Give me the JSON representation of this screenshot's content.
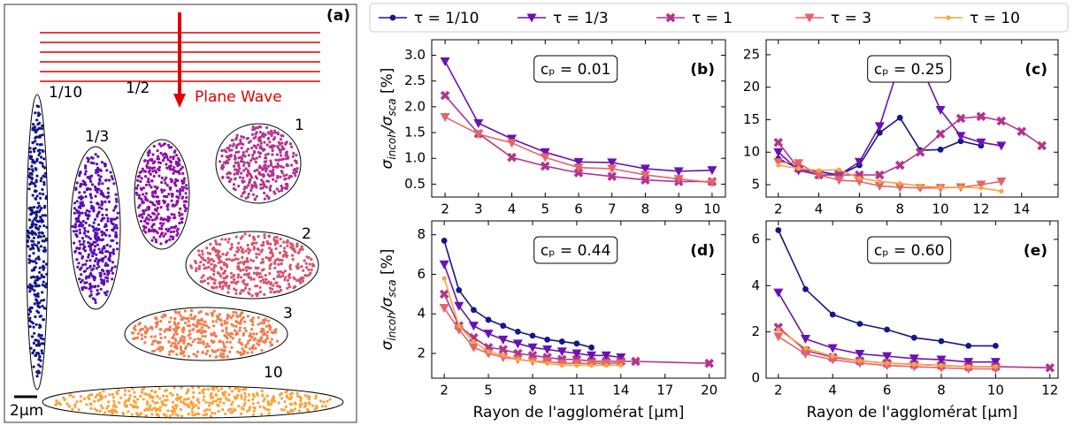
{
  "diagram": {
    "label": "(a)",
    "wave_label": "Plane Wave",
    "scale_label": "2μm",
    "shapes": [
      "1/10",
      "1/3",
      "1/2",
      "1",
      "2",
      "3",
      "10"
    ]
  },
  "legend": {
    "entries": [
      {
        "name": "τ = 1/10",
        "color": "#16168a",
        "marker": "o"
      },
      {
        "name": "τ = 1/3",
        "color": "#6a12b4",
        "marker": "v"
      },
      {
        "name": "τ = 1",
        "color": "#b2348f",
        "marker": "X"
      },
      {
        "name": "τ = 3",
        "color": "#e3646b",
        "marker": "v"
      },
      {
        "name": "τ = 10",
        "color": "#f7a440",
        "marker": "."
      }
    ]
  },
  "chart_data": [
    {
      "type": "line",
      "label": "(b)",
      "annotation": "cₚ = 0.01",
      "ylabel": [
        "σ",
        "incoh",
        "/σ",
        "sca",
        " [%]"
      ],
      "x": [
        2,
        3,
        4,
        5,
        6,
        7,
        8,
        9,
        10
      ],
      "series": [
        {
          "values": [
            null,
            null,
            null,
            null,
            null,
            null,
            null,
            null,
            null
          ]
        },
        {
          "values": [
            2.88,
            1.68,
            1.38,
            1.12,
            0.93,
            0.92,
            0.8,
            0.75,
            0.77
          ]
        },
        {
          "values": [
            2.22,
            1.48,
            1.02,
            0.85,
            0.72,
            0.65,
            0.58,
            0.55,
            0.55
          ]
        },
        {
          "values": [
            1.8,
            1.47,
            1.3,
            1.02,
            0.82,
            0.8,
            0.68,
            0.6,
            0.53
          ]
        },
        {
          "values": [
            null,
            null,
            null,
            null,
            null,
            null,
            null,
            null,
            null
          ]
        }
      ],
      "xlim": [
        1.6,
        10.4
      ],
      "xticks": [
        2,
        3,
        4,
        5,
        6,
        7,
        8,
        9,
        10
      ],
      "ylim": [
        0.25,
        3.3
      ],
      "yticks": [
        0.5,
        {
          "value": 1,
          "label": "1.0"
        },
        1.5,
        {
          "value": 2,
          "label": "2.0"
        },
        2.5,
        {
          "value": 3,
          "label": "3.0"
        }
      ]
    },
    {
      "type": "line",
      "label": "(c)",
      "annotation": "cₚ = 0.25",
      "x": [
        2,
        3,
        4,
        5,
        6,
        7,
        8,
        9,
        10,
        11,
        12,
        13,
        14,
        15
      ],
      "series": [
        {
          "values": [
            9,
            7.5,
            7,
            6.5,
            8,
            13,
            15.3,
            10.3,
            10.4,
            11.7,
            11,
            null,
            null,
            null
          ]
        },
        {
          "values": [
            10,
            7.2,
            6.5,
            6.5,
            8.5,
            14,
            23.8,
            23.5,
            16.5,
            12.5,
            11.5,
            11,
            null,
            null
          ]
        },
        {
          "values": [
            11.5,
            7.5,
            6.5,
            6.5,
            6.5,
            6.5,
            8,
            10,
            12.8,
            15.2,
            15.5,
            14.8,
            13.2,
            11
          ]
        },
        {
          "values": [
            8.5,
            8.3,
            6.5,
            5.7,
            5.5,
            4.8,
            4.6,
            4.5,
            4.5,
            4.6,
            5,
            5.5,
            null,
            null
          ]
        },
        {
          "values": [
            8,
            7.5,
            7.2,
            7.3,
            6,
            5.5,
            5.2,
            4.8,
            4.6,
            4.6,
            4.5,
            4,
            null,
            null
          ]
        }
      ],
      "xlim": [
        1.4,
        15.8
      ],
      "xticks": [
        2,
        4,
        6,
        8,
        10,
        12,
        14
      ],
      "ylim": [
        3.1,
        27.3
      ],
      "yticks": [
        5,
        10,
        15,
        20,
        25
      ]
    },
    {
      "type": "line",
      "label": "(d)",
      "annotation": "cₚ = 0.44",
      "ylabel": [
        "σ",
        "incoh",
        "/σ",
        "sca",
        " [%]"
      ],
      "xlabel": "Rayon de l'agglomérat [μm]",
      "x": [
        2,
        3,
        4,
        5,
        6,
        7,
        8,
        9,
        10,
        11,
        12,
        13,
        14,
        15,
        20
      ],
      "series": [
        {
          "values": [
            7.7,
            5.2,
            4.2,
            3.7,
            3.4,
            3.1,
            2.9,
            2.7,
            2.6,
            2.5,
            2.3,
            null,
            null,
            null,
            null
          ]
        },
        {
          "values": [
            6.5,
            4.4,
            3.4,
            3.0,
            2.7,
            2.5,
            2.3,
            2.2,
            2.1,
            2.0,
            1.9,
            1.9,
            1.8,
            null,
            null
          ]
        },
        {
          "values": [
            5.0,
            3.4,
            2.8,
            2.3,
            2.2,
            2.0,
            1.9,
            1.8,
            1.7,
            1.7,
            1.6,
            1.6,
            1.6,
            1.6,
            1.5
          ]
        },
        {
          "values": [
            4.3,
            3.2,
            2.3,
            2.0,
            1.8,
            1.7,
            1.6,
            1.6,
            1.5,
            1.5,
            1.5,
            1.5,
            1.5,
            null,
            null
          ]
        },
        {
          "values": [
            5.8,
            3.4,
            2.6,
            2.1,
            1.9,
            1.7,
            1.6,
            1.5,
            1.4,
            1.4,
            1.4,
            1.4,
            1.4,
            null,
            null
          ]
        }
      ],
      "xlim": [
        1.15,
        21.1
      ],
      "xticks": [
        2,
        5,
        8,
        11,
        14,
        17,
        20
      ],
      "ylim": [
        0.75,
        8.7
      ],
      "yticks": [
        2,
        4,
        6,
        8
      ]
    },
    {
      "type": "line",
      "label": "(e)",
      "annotation": "cₚ = 0.60",
      "xlabel": "Rayon de l'agglomérat [μm]",
      "x": [
        2,
        3,
        4,
        5,
        6,
        7,
        8,
        9,
        10,
        12
      ],
      "series": [
        {
          "values": [
            6.4,
            3.85,
            2.75,
            2.35,
            2.1,
            1.75,
            1.6,
            1.4,
            1.4,
            null
          ]
        },
        {
          "values": [
            3.7,
            1.7,
            1.3,
            1.05,
            0.95,
            0.85,
            0.8,
            0.7,
            0.7,
            null
          ]
        },
        {
          "values": [
            2.2,
            1.2,
            0.9,
            0.75,
            0.65,
            0.6,
            0.55,
            0.5,
            0.5,
            0.45
          ]
        },
        {
          "values": [
            1.8,
            1.05,
            0.8,
            0.65,
            0.55,
            0.5,
            0.45,
            0.4,
            0.4,
            null
          ]
        },
        {
          "values": [
            2.1,
            1.3,
            0.95,
            0.75,
            0.65,
            0.6,
            0.55,
            0.5,
            0.5,
            null
          ]
        }
      ],
      "xlim": [
        1.55,
        12.3
      ],
      "xticks": [
        2,
        4,
        6,
        8,
        10,
        12
      ],
      "ylim": [
        0,
        6.8
      ],
      "yticks": [
        0,
        2,
        4,
        6
      ]
    }
  ]
}
